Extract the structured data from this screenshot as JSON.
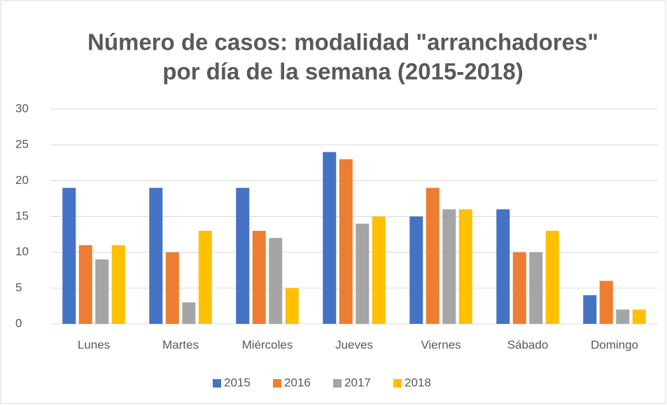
{
  "chart_data": {
    "type": "bar",
    "title": [
      "Número de casos: modalidad \"arranchadores\"",
      "por día de la semana (2015-2018)"
    ],
    "categories": [
      "Lunes",
      "Martes",
      "Miércoles",
      "Jueves",
      "Viernes",
      "Sábado",
      "Domingo"
    ],
    "series": [
      {
        "name": "2015",
        "color": "#4472c4",
        "values": [
          19,
          19,
          19,
          24,
          15,
          16,
          4
        ]
      },
      {
        "name": "2016",
        "color": "#ed7d31",
        "values": [
          11,
          10,
          13,
          23,
          19,
          10,
          6
        ]
      },
      {
        "name": "2017",
        "color": "#a5a5a5",
        "values": [
          9,
          3,
          12,
          14,
          16,
          10,
          2
        ]
      },
      {
        "name": "2018",
        "color": "#ffc000",
        "values": [
          11,
          13,
          5,
          15,
          16,
          13,
          2
        ]
      }
    ],
    "ylim": [
      0,
      30
    ],
    "yticks": [
      0,
      5,
      10,
      15,
      20,
      25,
      30
    ],
    "grid": true,
    "legend": "bottom"
  }
}
